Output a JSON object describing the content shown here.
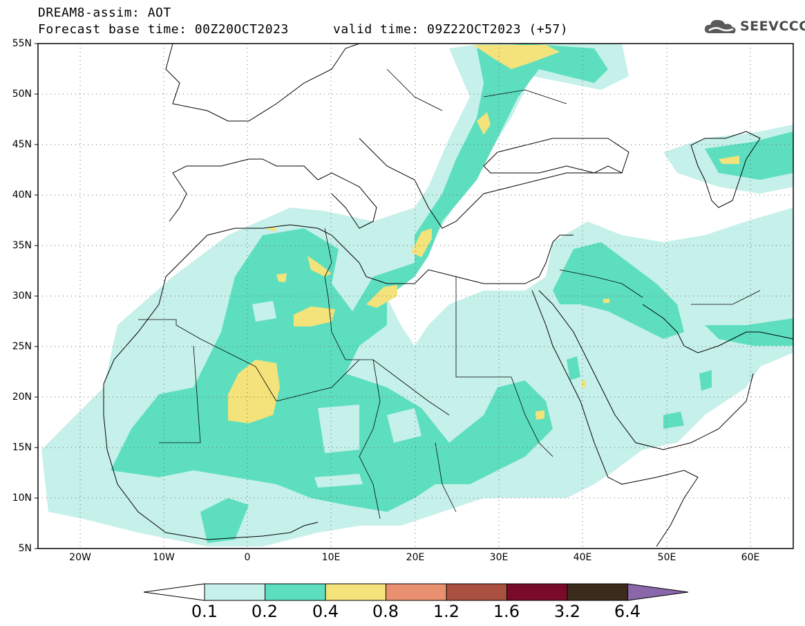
{
  "header": {
    "line1": "DREAM8-assim: AOT",
    "line2_base": "Forecast base time: 00Z20OCT2023",
    "line2_valid": "valid time: 09Z22OCT2023 (+57)",
    "logo_text": "SEEVCCC",
    "logo_icon": "cloud-icon"
  },
  "map": {
    "lat_labels": [
      "55N",
      "50N",
      "45N",
      "40N",
      "35N",
      "30N",
      "25N",
      "20N",
      "15N",
      "10N",
      "5N"
    ],
    "lon_labels": [
      "20W",
      "10W",
      "0",
      "10E",
      "20E",
      "30E",
      "40E",
      "50E",
      "60E"
    ],
    "extent": {
      "lon_min": -25,
      "lon_max": 65,
      "lat_min": 5,
      "lat_max": 55
    },
    "grid": "dotted"
  },
  "colorbar": {
    "labels": [
      "0.1",
      "0.2",
      "0.4",
      "0.8",
      "1.2",
      "1.6",
      "3.2",
      "6.4"
    ],
    "colors": [
      "#ffffff",
      "#c6f0ea",
      "#5ddfbf",
      "#f4e27a",
      "#e89070",
      "#aa5040",
      "#7a0a2a",
      "#3b2b1a",
      "#8a66aa"
    ]
  }
}
